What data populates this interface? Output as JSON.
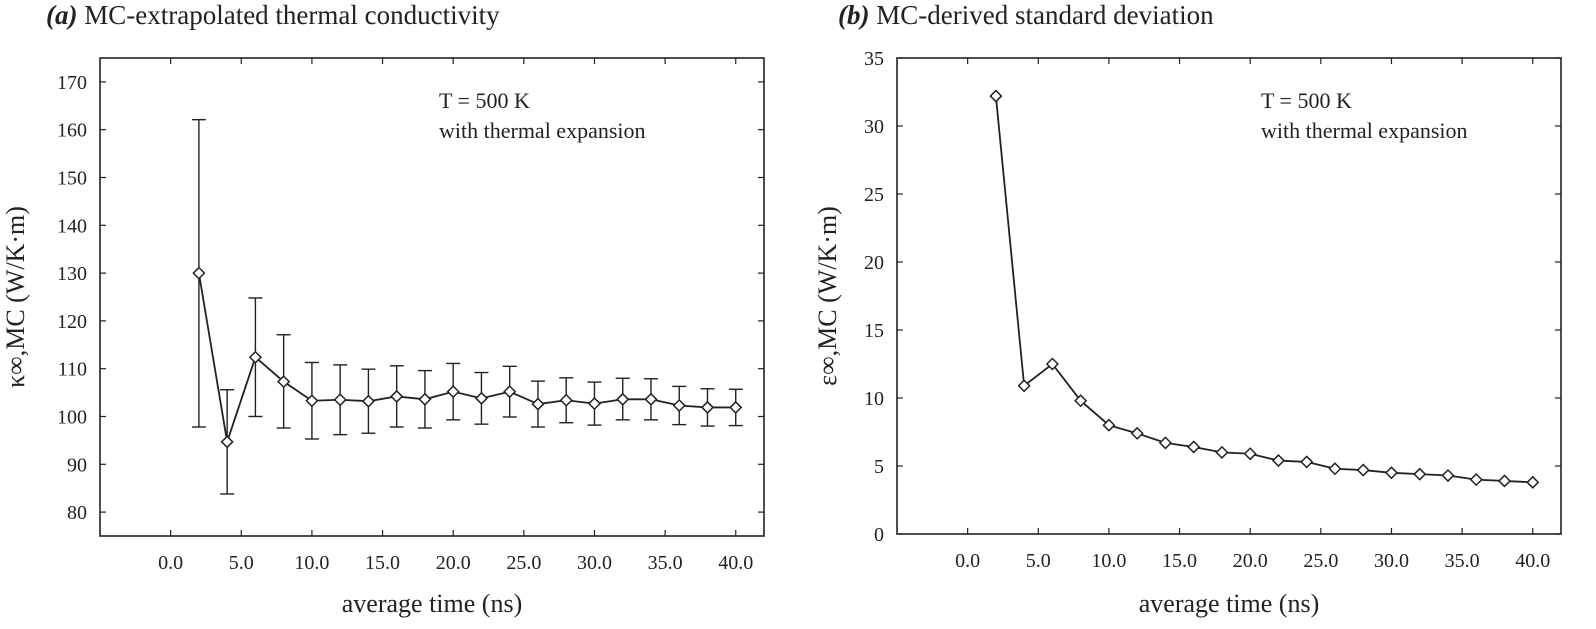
{
  "panels": [
    {
      "tag": "(a)",
      "title": "MC-extrapolated thermal conductivity",
      "ylabel": "κ∞,MC (W/K·m)",
      "xlabel": "average time (ns)",
      "annotation": [
        "T = 500 K",
        "with thermal expansion"
      ]
    },
    {
      "tag": "(b)",
      "title": "MC-derived standard deviation",
      "ylabel": "ε∞,MC (W/K·m)",
      "xlabel": "average time (ns)",
      "annotation": [
        "T = 500 K",
        "with thermal expansion"
      ]
    }
  ],
  "chart_data": [
    {
      "type": "line",
      "title": "(a) MC-extrapolated thermal conductivity",
      "xlabel": "average time (ns)",
      "ylabel": "κ∞,MC (W/K·m)",
      "xlim": [
        -5,
        42
      ],
      "ylim": [
        75,
        175
      ],
      "x_ticks": [
        "0.0",
        "5.0",
        "10.0",
        "15.0",
        "20.0",
        "25.0",
        "30.0",
        "35.0",
        "40.0"
      ],
      "y_ticks": [
        "80",
        "90",
        "100",
        "110",
        "120",
        "130",
        "140",
        "150",
        "160",
        "170"
      ],
      "marker": "diamond",
      "grid": false,
      "annotation": "T = 500 K, with thermal expansion",
      "series": [
        {
          "x": [
            2,
            4,
            6,
            8,
            10,
            12,
            14,
            16,
            18,
            20,
            22,
            24,
            26,
            28,
            30,
            32,
            34,
            36,
            38,
            40
          ],
          "values": [
            130.0,
            94.7,
            112.4,
            107.3,
            103.3,
            103.5,
            103.2,
            104.2,
            103.6,
            105.2,
            103.8,
            105.2,
            102.6,
            103.4,
            102.7,
            103.6,
            103.6,
            102.3,
            101.9,
            101.9
          ],
          "error_low": [
            97.8,
            83.8,
            100.0,
            97.6,
            95.3,
            96.2,
            96.5,
            97.8,
            97.6,
            99.3,
            98.4,
            99.9,
            97.8,
            98.7,
            98.2,
            99.3,
            99.3,
            98.3,
            98.0,
            98.1
          ],
          "error_high": [
            162.1,
            105.6,
            124.8,
            117.1,
            111.3,
            110.8,
            109.9,
            110.6,
            109.6,
            111.1,
            109.2,
            110.5,
            107.4,
            108.1,
            107.2,
            108.0,
            107.9,
            106.3,
            105.8,
            105.7
          ]
        }
      ]
    },
    {
      "type": "line",
      "title": "(b) MC-derived standard deviation",
      "xlabel": "average time (ns)",
      "ylabel": "ε∞,MC (W/K·m)",
      "xlim": [
        -5,
        42
      ],
      "ylim": [
        0,
        35
      ],
      "x_ticks": [
        "0.0",
        "5.0",
        "10.0",
        "15.0",
        "20.0",
        "25.0",
        "30.0",
        "35.0",
        "40.0"
      ],
      "y_ticks": [
        "0",
        "5",
        "10",
        "15",
        "20",
        "25",
        "30",
        "35"
      ],
      "marker": "diamond",
      "grid": false,
      "annotation": "T = 500 K, with thermal expansion",
      "series": [
        {
          "x": [
            2,
            4,
            6,
            8,
            10,
            12,
            14,
            16,
            18,
            20,
            22,
            24,
            26,
            28,
            30,
            32,
            34,
            36,
            38,
            40
          ],
          "values": [
            32.2,
            10.9,
            12.5,
            9.8,
            8.0,
            7.4,
            6.7,
            6.4,
            6.0,
            5.9,
            5.4,
            5.3,
            4.8,
            4.7,
            4.5,
            4.4,
            4.3,
            4.0,
            3.9,
            3.8
          ]
        }
      ]
    }
  ]
}
